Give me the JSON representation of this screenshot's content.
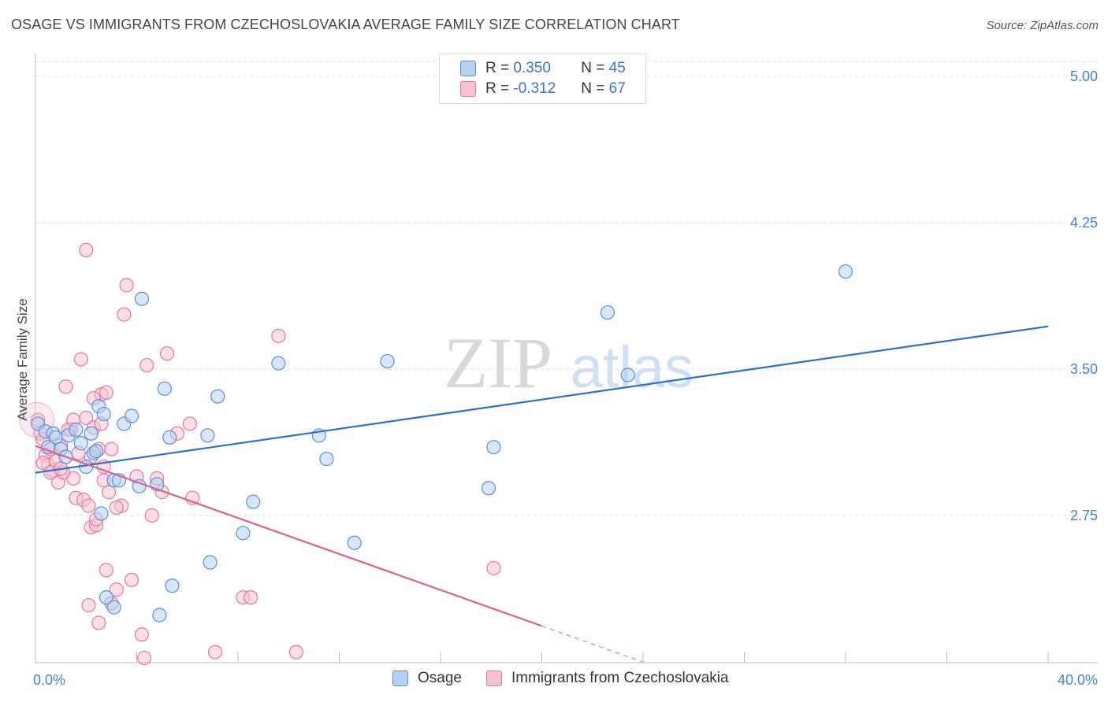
{
  "title": "OSAGE VS IMMIGRANTS FROM CZECHOSLOVAKIA AVERAGE FAMILY SIZE CORRELATION CHART",
  "source": "Source: ZipAtlas.com",
  "watermark": {
    "zip": "ZIP",
    "atlas": "atlas"
  },
  "colors": {
    "osage_fill": "#b7d1f3",
    "osage_stroke": "#5a8fd8",
    "osage_line": "#2b6fd0",
    "czech_fill": "#f7c3d3",
    "czech_stroke": "#e2799b",
    "czech_line": "#e0608d",
    "axis_text": "#4a7fd6",
    "grid": "#dddddd"
  },
  "legend": {
    "rows": [
      {
        "r_label": "R =",
        "r_value": "0.350",
        "n_label": "N =",
        "n_value": "45"
      },
      {
        "r_label": "R =",
        "r_value": "-0.312",
        "n_label": "N =",
        "n_value": "67"
      }
    ]
  },
  "bottom_legend": {
    "osage": "Osage",
    "czech": "Immigrants from Czechoslovakia"
  },
  "chart_data": {
    "type": "scatter",
    "ylabel": "Average Family Size",
    "xlabel": "",
    "x_tick_labels": {
      "min": "0.0%",
      "max": "40.0%"
    },
    "xlim": [
      0,
      40
    ],
    "ylim": [
      1.95,
      5.15
    ],
    "y_ticks": [
      {
        "value": 5.0,
        "label": "5.00"
      },
      {
        "value": 4.25,
        "label": "4.25"
      },
      {
        "value": 3.5,
        "label": "3.50"
      },
      {
        "value": 2.75,
        "label": "2.75"
      }
    ],
    "series": [
      {
        "name": "Osage",
        "r": 0.35,
        "n": 45,
        "trend": {
          "x": [
            0,
            40
          ],
          "y": [
            2.969,
            3.719
          ]
        },
        "points": [
          [
            0.1,
            3.22
          ],
          [
            0.4,
            3.18
          ],
          [
            0.7,
            3.17
          ],
          [
            0.8,
            3.15
          ],
          [
            1.0,
            3.09
          ],
          [
            1.3,
            3.16
          ],
          [
            1.6,
            3.19
          ],
          [
            1.8,
            3.12
          ],
          [
            2.2,
            3.17
          ],
          [
            2.3,
            3.07
          ],
          [
            2.5,
            3.31
          ],
          [
            2.4,
            3.08
          ],
          [
            2.6,
            2.76
          ],
          [
            2.7,
            3.27
          ],
          [
            2.8,
            2.33
          ],
          [
            3.1,
            2.28
          ],
          [
            3.1,
            2.93
          ],
          [
            3.3,
            2.93
          ],
          [
            3.5,
            3.22
          ],
          [
            3.8,
            3.26
          ],
          [
            4.1,
            2.9
          ],
          [
            4.2,
            3.86
          ],
          [
            4.8,
            2.91
          ],
          [
            4.9,
            2.24
          ],
          [
            5.1,
            3.4
          ],
          [
            5.3,
            3.15
          ],
          [
            5.4,
            2.39
          ],
          [
            6.8,
            3.16
          ],
          [
            6.9,
            2.51
          ],
          [
            7.2,
            3.36
          ],
          [
            8.2,
            2.66
          ],
          [
            8.6,
            2.82
          ],
          [
            9.6,
            3.53
          ],
          [
            11.2,
            3.16
          ],
          [
            11.5,
            3.04
          ],
          [
            12.6,
            2.61
          ],
          [
            13.9,
            3.54
          ],
          [
            17.9,
            2.89
          ],
          [
            18.1,
            3.1
          ],
          [
            22.6,
            3.79
          ],
          [
            23.4,
            3.47
          ],
          [
            32.0,
            4.0
          ],
          [
            0.5,
            3.1
          ],
          [
            1.2,
            3.05
          ],
          [
            2.0,
            3.0
          ]
        ]
      },
      {
        "name": "Immigrants from Czechoslovakia",
        "r": -0.312,
        "n": 67,
        "trend": {
          "x": [
            0,
            20
          ],
          "y": [
            3.106,
            2.184
          ]
        },
        "trend_dashed": {
          "x": [
            20,
            24
          ],
          "y": [
            2.184,
            1.999
          ]
        },
        "points": [
          [
            0.1,
            3.24
          ],
          [
            0.2,
            3.17
          ],
          [
            0.3,
            3.14
          ],
          [
            0.4,
            3.06
          ],
          [
            0.5,
            3.01
          ],
          [
            0.6,
            3.09
          ],
          [
            0.7,
            2.98
          ],
          [
            0.8,
            3.03
          ],
          [
            0.9,
            2.92
          ],
          [
            1.0,
            3.11
          ],
          [
            1.1,
            2.97
          ],
          [
            1.2,
            3.41
          ],
          [
            1.4,
            3.19
          ],
          [
            1.5,
            2.94
          ],
          [
            1.6,
            2.84
          ],
          [
            1.7,
            3.07
          ],
          [
            1.8,
            3.55
          ],
          [
            1.9,
            2.83
          ],
          [
            2.0,
            3.25
          ],
          [
            2.1,
            2.8
          ],
          [
            2.2,
            2.69
          ],
          [
            2.3,
            3.2
          ],
          [
            2.4,
            2.7
          ],
          [
            2.5,
            3.09
          ],
          [
            2.6,
            3.37
          ],
          [
            2.7,
            3.0
          ],
          [
            2.8,
            3.38
          ],
          [
            2.9,
            2.87
          ],
          [
            2.1,
            2.29
          ],
          [
            2.2,
            3.05
          ],
          [
            2.4,
            2.73
          ],
          [
            2.5,
            2.2
          ],
          [
            2.6,
            3.22
          ],
          [
            2.7,
            2.93
          ],
          [
            2.8,
            2.47
          ],
          [
            3.0,
            3.09
          ],
          [
            3.0,
            2.3
          ],
          [
            3.2,
            2.37
          ],
          [
            3.4,
            2.8
          ],
          [
            3.5,
            3.78
          ],
          [
            3.6,
            3.93
          ],
          [
            3.8,
            2.42
          ],
          [
            4.0,
            2.95
          ],
          [
            4.2,
            2.14
          ],
          [
            4.4,
            3.52
          ],
          [
            4.6,
            2.75
          ],
          [
            4.8,
            2.94
          ],
          [
            5.0,
            2.87
          ],
          [
            5.2,
            3.58
          ],
          [
            5.6,
            3.17
          ],
          [
            6.1,
            3.22
          ],
          [
            6.2,
            2.84
          ],
          [
            7.1,
            2.05
          ],
          [
            8.2,
            2.33
          ],
          [
            8.5,
            2.33
          ],
          [
            9.6,
            3.67
          ],
          [
            10.3,
            2.05
          ],
          [
            18.1,
            2.48
          ],
          [
            2.0,
            4.11
          ],
          [
            1.3,
            3.19
          ],
          [
            0.3,
            3.02
          ],
          [
            0.6,
            2.97
          ],
          [
            1.0,
            2.99
          ],
          [
            2.3,
            3.35
          ],
          [
            4.3,
            2.02
          ],
          [
            3.2,
            2.79
          ],
          [
            1.5,
            3.24
          ]
        ]
      }
    ]
  }
}
